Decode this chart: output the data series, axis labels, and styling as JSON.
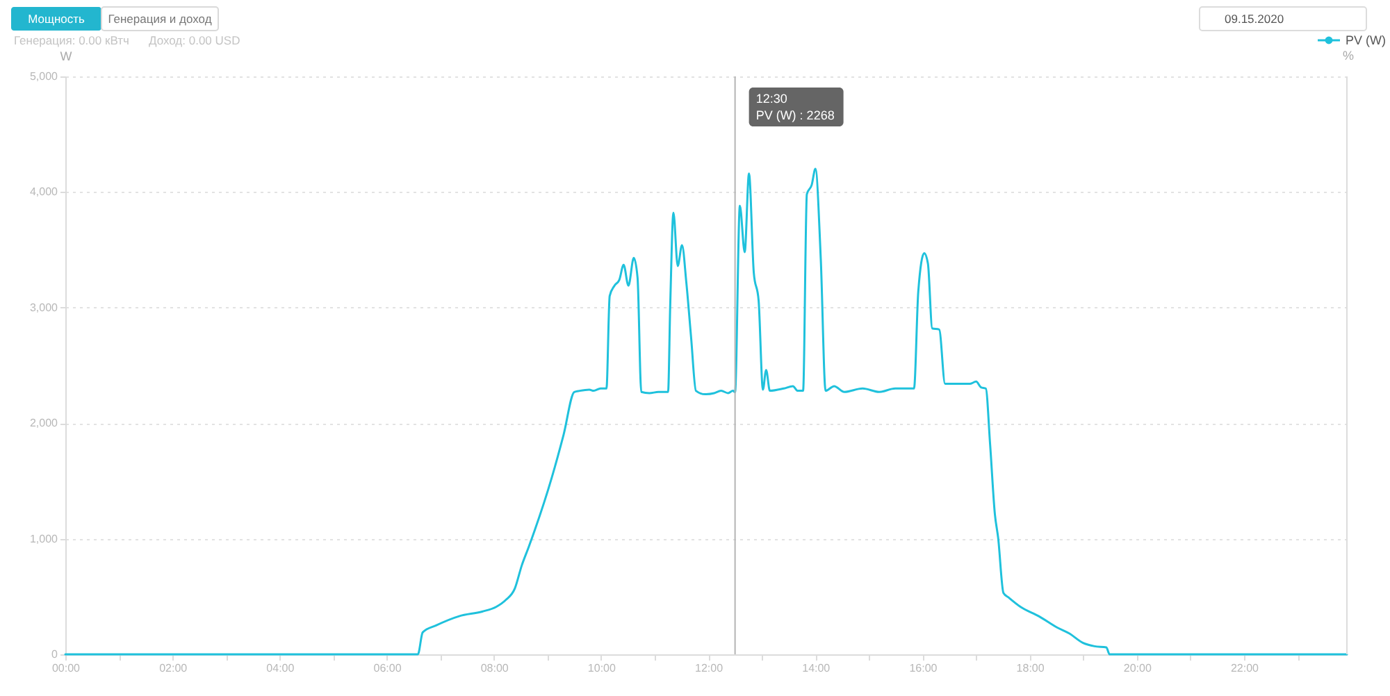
{
  "chart_data": {
    "type": "line",
    "ylabel": "W",
    "y2label": "%",
    "x": [
      0,
      6.58,
      6.67,
      6.92,
      7.35,
      7.78,
      8.04,
      8.22,
      8.39,
      8.52,
      8.65,
      9.08,
      9.3,
      9.5,
      9.6,
      9.78,
      9.86,
      9.99,
      10.1,
      10.16,
      10.25,
      10.34,
      10.42,
      10.51,
      10.61,
      10.68,
      10.75,
      10.9,
      11.07,
      11.25,
      11.29,
      11.35,
      11.43,
      11.51,
      11.59,
      11.68,
      11.77,
      11.94,
      12.11,
      12.24,
      12.37,
      12.46,
      12.5,
      12.59,
      12.68,
      12.76,
      12.85,
      12.94,
      13.02,
      13.08,
      13.15,
      13.41,
      13.58,
      13.67,
      13.77,
      13.84,
      13.93,
      14.0,
      14.1,
      14.19,
      14.35,
      14.54,
      14.88,
      15.19,
      15.49,
      15.84,
      15.92,
      16.03,
      16.1,
      16.18,
      16.31,
      16.42,
      16.61,
      16.88,
      17.0,
      17.09,
      17.18,
      17.26,
      17.35,
      17.41,
      17.51,
      17.61,
      17.83,
      18.17,
      18.52,
      18.74,
      18.99,
      19.21,
      19.43,
      19.49,
      23.92
    ],
    "series": [
      {
        "name": "PV (W)",
        "color": "#1fc1dc",
        "values": [
          0,
          0,
          190,
          250,
          330,
          370,
          410,
          470,
          570,
          770,
          930,
          1530,
          1900,
          2270,
          2280,
          2290,
          2280,
          2300,
          2300,
          3100,
          3190,
          3240,
          3370,
          3190,
          3430,
          3260,
          2270,
          2260,
          2270,
          2270,
          3020,
          3820,
          3360,
          3540,
          3220,
          2740,
          2280,
          2250,
          2260,
          2280,
          2260,
          2280,
          2268,
          3880,
          3480,
          4160,
          3300,
          3060,
          2290,
          2460,
          2280,
          2300,
          2320,
          2280,
          2280,
          3980,
          4060,
          4200,
          3420,
          2280,
          2320,
          2270,
          2300,
          2270,
          2300,
          2300,
          3140,
          3470,
          3380,
          2820,
          2810,
          2340,
          2340,
          2340,
          2360,
          2310,
          2300,
          1820,
          1210,
          1010,
          530,
          490,
          410,
          330,
          230,
          180,
          100,
          70,
          60,
          0,
          0
        ]
      }
    ],
    "xlim": [
      0,
      23.92
    ],
    "xticks": [
      {
        "value": 0,
        "label": "00:00"
      },
      {
        "value": 1,
        "label": null
      },
      {
        "value": 2,
        "label": "02:00"
      },
      {
        "value": 3,
        "label": null
      },
      {
        "value": 4,
        "label": "04:00"
      },
      {
        "value": 5,
        "label": null
      },
      {
        "value": 6,
        "label": "06:00"
      },
      {
        "value": 7,
        "label": null
      },
      {
        "value": 8,
        "label": "08:00"
      },
      {
        "value": 9,
        "label": null
      },
      {
        "value": 10,
        "label": "10:00"
      },
      {
        "value": 11,
        "label": null
      },
      {
        "value": 12,
        "label": "12:00"
      },
      {
        "value": 13,
        "label": null
      },
      {
        "value": 14,
        "label": "14:00"
      },
      {
        "value": 15,
        "label": null
      },
      {
        "value": 16,
        "label": "16:00"
      },
      {
        "value": 17,
        "label": null
      },
      {
        "value": 18,
        "label": "18:00"
      },
      {
        "value": 19,
        "label": null
      },
      {
        "value": 20,
        "label": "20:00"
      },
      {
        "value": 21,
        "label": null
      },
      {
        "value": 22,
        "label": "22:00"
      },
      {
        "value": 23,
        "label": null
      }
    ],
    "ylim": [
      0,
      5000
    ],
    "yticks": [
      0,
      {
        "value": 1000,
        "label": "1,000"
      },
      {
        "value": 2000,
        "label": "2,000"
      },
      {
        "value": 3000,
        "label": "3,000"
      },
      {
        "value": 4000,
        "label": "4,000"
      },
      {
        "value": 5000,
        "label": "5,000"
      }
    ],
    "grid": "y",
    "legend": "top right",
    "marker": "none",
    "line_style": "solid",
    "ref_lines": [
      {
        "axis": "x",
        "value": 12.5,
        "label": "12:30",
        "color": "#b4b4b4"
      }
    ],
    "annotations": [
      "Мощность",
      "Генерация и доход",
      "Генерация: 0.00 кВтч",
      "Доход: 0.00 USD",
      "09.15.2020",
      "PV (W) : 2268"
    ]
  }
}
